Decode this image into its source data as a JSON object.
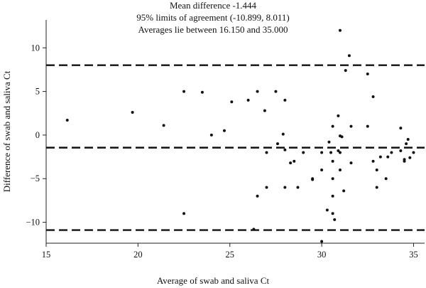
{
  "chart_data": {
    "type": "scatter",
    "title_lines": [
      "Mean difference -1.444",
      "95% limits of agreement (-10.899, 8.011)",
      "Averages lie between 16.150 and 35.000"
    ],
    "xlabel": "Average of swab and saliva Ct",
    "ylabel": "Difference of swab and saliva Ct",
    "xlim": [
      15,
      35.6
    ],
    "ylim": [
      -12.4,
      13.2
    ],
    "x_ticks": [
      15,
      20,
      25,
      30,
      35
    ],
    "y_ticks": [
      10,
      5,
      0,
      -5,
      -10
    ],
    "grid": false,
    "reference_lines": [
      {
        "label": "upper limit of agreement",
        "y": 8.011
      },
      {
        "label": "mean difference",
        "y": -1.444
      },
      {
        "label": "lower limit of agreement",
        "y": -10.899
      }
    ],
    "points": [
      {
        "x": 16.15,
        "y": 1.7
      },
      {
        "x": 19.7,
        "y": 2.6
      },
      {
        "x": 21.4,
        "y": 1.1
      },
      {
        "x": 22.5,
        "y": 5.0
      },
      {
        "x": 22.5,
        "y": -9.0
      },
      {
        "x": 23.5,
        "y": 4.9
      },
      {
        "x": 24.0,
        "y": 0.0
      },
      {
        "x": 24.7,
        "y": 0.5
      },
      {
        "x": 25.1,
        "y": 3.8
      },
      {
        "x": 26.0,
        "y": 4.0
      },
      {
        "x": 26.3,
        "y": -10.8
      },
      {
        "x": 26.5,
        "y": 5.0
      },
      {
        "x": 26.5,
        "y": -7.0
      },
      {
        "x": 26.9,
        "y": 2.8
      },
      {
        "x": 27.0,
        "y": -2.0
      },
      {
        "x": 27.0,
        "y": -6.0
      },
      {
        "x": 27.5,
        "y": 5.0
      },
      {
        "x": 27.6,
        "y": -1.0
      },
      {
        "x": 28.0,
        "y": 4.0
      },
      {
        "x": 27.9,
        "y": 0.1
      },
      {
        "x": 28.0,
        "y": -1.7
      },
      {
        "x": 28.0,
        "y": -6.0
      },
      {
        "x": 28.3,
        "y": -3.2
      },
      {
        "x": 28.5,
        "y": -3.0
      },
      {
        "x": 28.7,
        "y": -6.0
      },
      {
        "x": 29.0,
        "y": -2.0
      },
      {
        "x": 29.5,
        "y": -5.0
      },
      {
        "x": 29.5,
        "y": -5.1
      },
      {
        "x": 30.0,
        "y": -2.0
      },
      {
        "x": 30.0,
        "y": -4.0
      },
      {
        "x": 30.0,
        "y": -12.2
      },
      {
        "x": 30.3,
        "y": -8.6
      },
      {
        "x": 30.4,
        "y": -0.8
      },
      {
        "x": 30.5,
        "y": -2.0
      },
      {
        "x": 30.6,
        "y": 1.0
      },
      {
        "x": 30.6,
        "y": -3.0
      },
      {
        "x": 30.6,
        "y": -5.0
      },
      {
        "x": 30.6,
        "y": -7.0
      },
      {
        "x": 30.6,
        "y": -9.0
      },
      {
        "x": 30.7,
        "y": -9.7
      },
      {
        "x": 30.9,
        "y": 2.2
      },
      {
        "x": 30.9,
        "y": -1.8
      },
      {
        "x": 31.0,
        "y": -2.0
      },
      {
        "x": 31.0,
        "y": -4.0
      },
      {
        "x": 31.0,
        "y": 12.0
      },
      {
        "x": 31.0,
        "y": -0.1
      },
      {
        "x": 31.1,
        "y": -0.2
      },
      {
        "x": 31.2,
        "y": -6.4
      },
      {
        "x": 31.3,
        "y": 7.4
      },
      {
        "x": 31.5,
        "y": 9.1
      },
      {
        "x": 31.6,
        "y": -3.2
      },
      {
        "x": 31.6,
        "y": 1.0
      },
      {
        "x": 32.5,
        "y": 7.0
      },
      {
        "x": 32.5,
        "y": 1.0
      },
      {
        "x": 32.8,
        "y": 4.4
      },
      {
        "x": 32.8,
        "y": -3.0
      },
      {
        "x": 33.0,
        "y": -4.0
      },
      {
        "x": 33.0,
        "y": -6.0
      },
      {
        "x": 33.2,
        "y": -2.5
      },
      {
        "x": 33.5,
        "y": -5.0
      },
      {
        "x": 33.6,
        "y": -2.5
      },
      {
        "x": 33.8,
        "y": -2.0
      },
      {
        "x": 34.3,
        "y": 0.8
      },
      {
        "x": 34.3,
        "y": -1.8
      },
      {
        "x": 34.5,
        "y": -2.8
      },
      {
        "x": 34.5,
        "y": -3.0
      },
      {
        "x": 34.6,
        "y": -1.0
      },
      {
        "x": 34.7,
        "y": -0.5
      },
      {
        "x": 34.8,
        "y": -2.6
      },
      {
        "x": 35.0,
        "y": -2.0
      }
    ]
  }
}
